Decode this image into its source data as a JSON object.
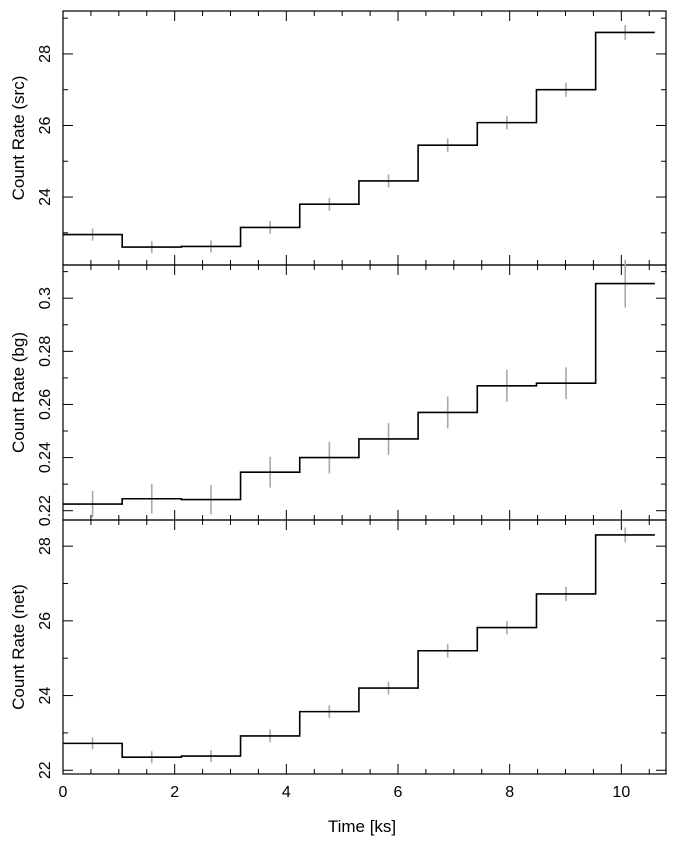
{
  "chart_data": {
    "type": "line",
    "style": "step",
    "x_label": "Time [ks]",
    "x_range": [
      0,
      10.8
    ],
    "x_ticks": [
      0,
      2,
      4,
      6,
      8,
      10
    ],
    "x_tick_labels": [
      "0",
      "2",
      "4",
      "6",
      "8",
      "10"
    ],
    "bin_edges": [
      0,
      1.06,
      2.12,
      3.18,
      4.24,
      5.3,
      6.36,
      7.42,
      8.48,
      9.54,
      10.6
    ],
    "bin_centers": [
      0.53,
      1.59,
      2.65,
      3.71,
      4.77,
      5.83,
      6.89,
      7.95,
      9.01,
      10.07
    ],
    "error_color": "#a8a8a8",
    "line_color": "#000000",
    "panels": [
      {
        "ylabel": "Count Rate (src)",
        "ylim": [
          22.1,
          29.2
        ],
        "y_ticks": [
          24,
          26,
          28
        ],
        "y_tick_labels": [
          "24",
          "26",
          "28"
        ],
        "values": [
          22.95,
          22.6,
          22.62,
          23.15,
          23.8,
          24.45,
          25.45,
          26.08,
          27.0,
          28.6
        ],
        "errors": [
          0.17,
          0.17,
          0.17,
          0.18,
          0.18,
          0.18,
          0.19,
          0.19,
          0.2,
          0.21
        ]
      },
      {
        "ylabel": "Count Rate (bg)",
        "ylim": [
          0.2165,
          0.3125
        ],
        "y_ticks": [
          0.22,
          0.24,
          0.26,
          0.28,
          0.3
        ],
        "y_tick_labels": [
          "0.22",
          "0.24",
          "0.26",
          "0.28",
          "0.3"
        ],
        "values": [
          0.2225,
          0.2245,
          0.2242,
          0.2345,
          0.24,
          0.247,
          0.257,
          0.267,
          0.268,
          0.3055
        ],
        "errors": [
          0.005,
          0.0055,
          0.0055,
          0.0058,
          0.006,
          0.006,
          0.006,
          0.006,
          0.006,
          0.009
        ]
      },
      {
        "ylabel": "Count Rate (net)",
        "ylim": [
          21.9,
          28.7
        ],
        "y_ticks": [
          22,
          24,
          26,
          28
        ],
        "y_tick_labels": [
          "22",
          "24",
          "26",
          "28"
        ],
        "values": [
          22.72,
          22.35,
          22.38,
          22.92,
          23.57,
          24.2,
          25.2,
          25.82,
          26.72,
          28.3
        ],
        "errors": [
          0.16,
          0.16,
          0.16,
          0.17,
          0.17,
          0.17,
          0.18,
          0.18,
          0.19,
          0.2
        ]
      }
    ]
  }
}
